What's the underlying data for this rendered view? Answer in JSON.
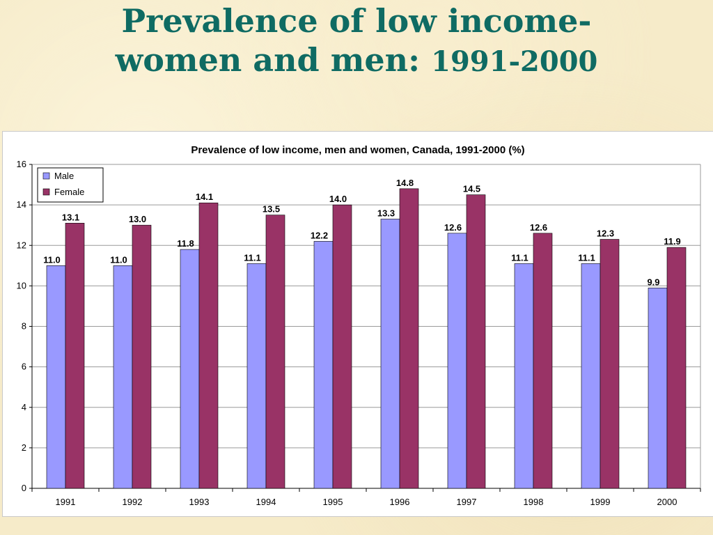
{
  "slide": {
    "title_line1": "Prevalence  of low income-",
    "title_line2": "women and men: ",
    "title_years": "1991-2000"
  },
  "colors": {
    "title": "#0f6b63",
    "male": "#9999ff",
    "female": "#993366",
    "background": "#f6ebc9"
  },
  "chart_data": {
    "type": "bar",
    "title": "Prevalence of low income, men and women, Canada, 1991-2000 (%)",
    "xlabel": "",
    "ylabel": "",
    "categories": [
      "1991",
      "1992",
      "1993",
      "1994",
      "1995",
      "1996",
      "1997",
      "1998",
      "1999",
      "2000"
    ],
    "series": [
      {
        "name": "Male",
        "values": [
          11.0,
          11.0,
          11.8,
          11.1,
          12.2,
          13.3,
          12.6,
          11.1,
          11.1,
          9.9
        ],
        "labels": [
          "11.0",
          "11.0",
          "11.8",
          "11.1",
          "12.2",
          "13.3",
          "12.6",
          "11.1",
          "11.1",
          "9.9"
        ]
      },
      {
        "name": "Female",
        "values": [
          13.1,
          13.0,
          14.1,
          13.5,
          14.0,
          14.8,
          14.5,
          12.6,
          12.3,
          11.9
        ],
        "labels": [
          "13.1",
          "13.0",
          "14.1",
          "13.5",
          "14.0",
          "14.8",
          "14.5",
          "12.6",
          "12.3",
          "11.9"
        ]
      }
    ],
    "ylim": [
      0,
      16
    ],
    "yticks": [
      "0",
      "2",
      "4",
      "6",
      "8",
      "10",
      "12",
      "14",
      "16"
    ],
    "grid": true,
    "legend": "top-left"
  }
}
